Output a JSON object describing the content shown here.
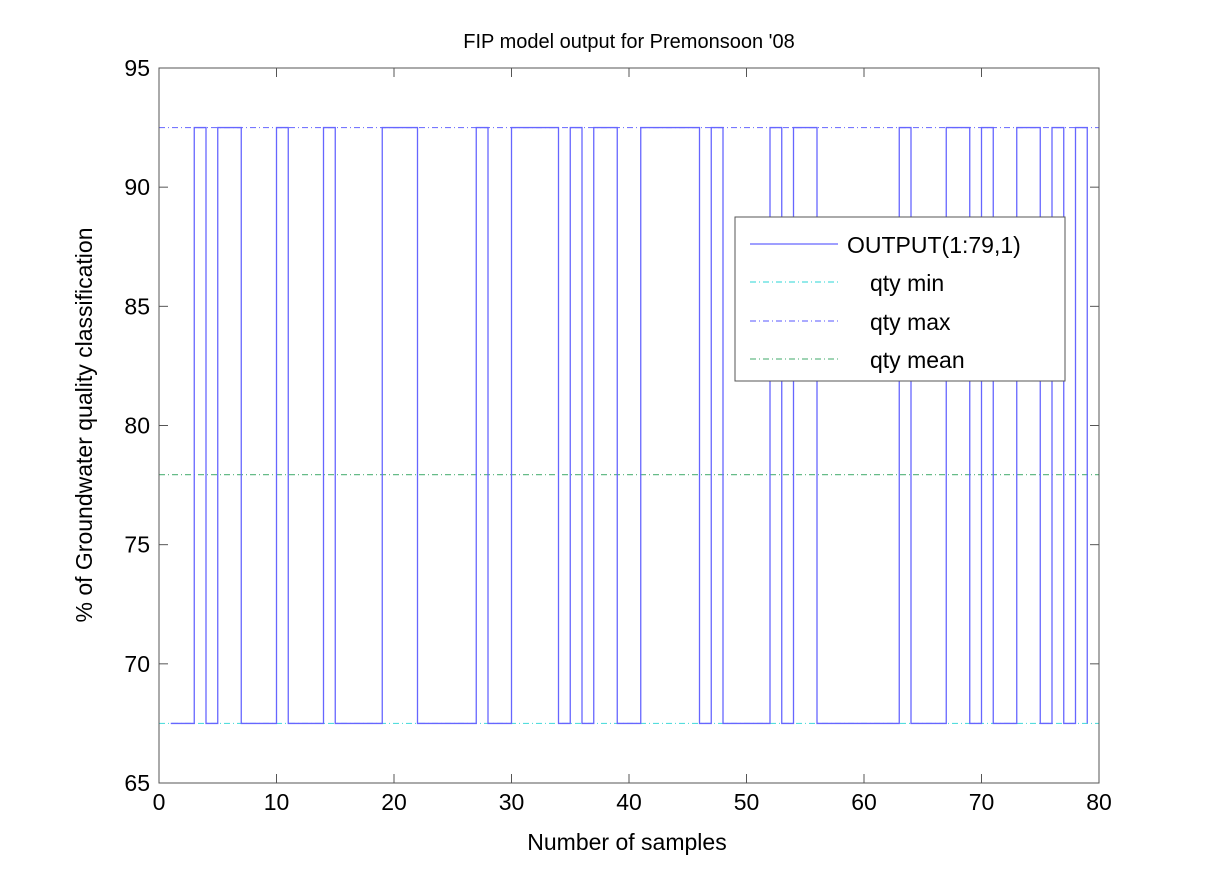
{
  "chart_data": {
    "type": "line",
    "title": "FIP model output for Premonsoon '08",
    "xlabel": "Number of samples",
    "ylabel": "% of Groundwater quality classification",
    "xlim": [
      0,
      80
    ],
    "ylim": [
      65,
      95
    ],
    "xticks": [
      0,
      10,
      20,
      30,
      40,
      50,
      60,
      70,
      80
    ],
    "yticks": [
      65,
      70,
      75,
      80,
      85,
      90,
      95
    ],
    "grid": false,
    "legend_position": "top-right",
    "x": [
      1,
      2,
      3,
      4,
      5,
      6,
      7,
      8,
      9,
      10,
      11,
      12,
      13,
      14,
      15,
      16,
      17,
      18,
      19,
      20,
      21,
      22,
      23,
      24,
      25,
      26,
      27,
      28,
      29,
      30,
      31,
      32,
      33,
      34,
      35,
      36,
      37,
      38,
      39,
      40,
      41,
      42,
      43,
      44,
      45,
      46,
      47,
      48,
      49,
      50,
      51,
      52,
      53,
      54,
      55,
      56,
      57,
      58,
      59,
      60,
      61,
      62,
      63,
      64,
      65,
      66,
      67,
      68,
      69,
      70,
      71,
      72,
      73,
      74,
      75,
      76,
      77,
      78,
      79
    ],
    "series": [
      {
        "name": "OUTPUT(1:79,1)",
        "style": "stairs",
        "color": "#6666ff",
        "values": [
          67.5,
          67.5,
          92.5,
          67.5,
          92.5,
          92.5,
          67.5,
          67.5,
          67.5,
          92.5,
          67.5,
          67.5,
          67.5,
          92.5,
          67.5,
          67.5,
          67.5,
          67.5,
          92.5,
          92.5,
          92.5,
          67.5,
          67.5,
          67.5,
          67.5,
          67.5,
          92.5,
          67.5,
          67.5,
          92.5,
          92.5,
          92.5,
          92.5,
          67.5,
          92.5,
          67.5,
          92.5,
          92.5,
          67.5,
          67.5,
          92.5,
          92.5,
          92.5,
          92.5,
          92.5,
          67.5,
          92.5,
          67.5,
          67.5,
          67.5,
          67.5,
          92.5,
          67.5,
          92.5,
          92.5,
          67.5,
          67.5,
          67.5,
          67.5,
          67.5,
          67.5,
          67.5,
          92.5,
          67.5,
          67.5,
          67.5,
          92.5,
          92.5,
          67.5,
          92.5,
          67.5,
          67.5,
          92.5,
          92.5,
          67.5,
          92.5,
          67.5,
          92.5,
          67.5
        ]
      },
      {
        "name": "qty min",
        "style": "dash-dot",
        "color": "#55dddd",
        "value": 67.5
      },
      {
        "name": "qty max",
        "style": "dash-dot",
        "color": "#7777ff",
        "value": 92.5
      },
      {
        "name": "qty mean",
        "style": "dash-dot",
        "color": "#66bb88",
        "value": 77.94
      }
    ]
  }
}
